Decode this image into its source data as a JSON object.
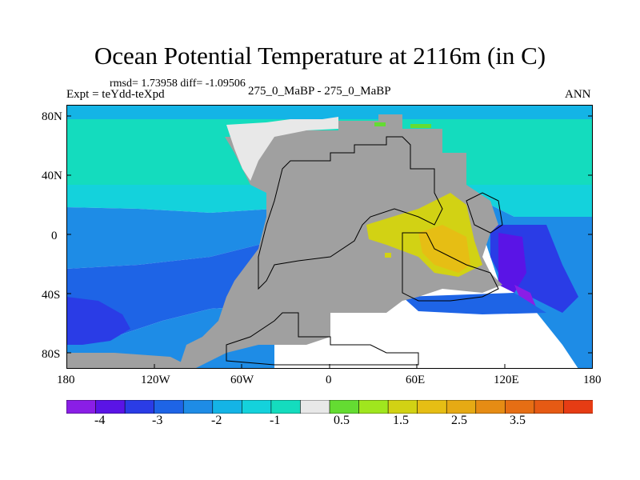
{
  "title": "Ocean Potential Temperature at 2116m (in C)",
  "stats_line": "rmsd= 1.73958 diff= -1.09506",
  "left_label": "Expt = teYdd-teXpd",
  "center_label": "275_0_MaBP - 275_0_MaBP",
  "right_label": "ANN",
  "axes": {
    "lat_ticks": [
      "80N",
      "40N",
      "0",
      "40S",
      "80S"
    ],
    "lon_ticks": [
      "180",
      "120W",
      "60W",
      "0",
      "60E",
      "120E",
      "180"
    ]
  },
  "colorbar": {
    "colors": [
      "#8a1ee6",
      "#5a14e6",
      "#2a3ce6",
      "#1e64e6",
      "#1e8ce6",
      "#14b4e6",
      "#14d2dc",
      "#14dcbe",
      "#e8e8e8",
      "#64dc32",
      "#a0e61e",
      "#d2d214",
      "#e6be14",
      "#e6aa14",
      "#e68c14",
      "#e66e14",
      "#e65a14",
      "#e63c14"
    ],
    "labels": [
      "-4",
      "-3",
      "-2",
      "-1",
      "0.5",
      "1.5",
      "2.5",
      "3.5"
    ]
  },
  "map": {
    "land_color": "#a0a0a0",
    "ice_color": "#e8e8e8",
    "coast_color": "#000000"
  }
}
